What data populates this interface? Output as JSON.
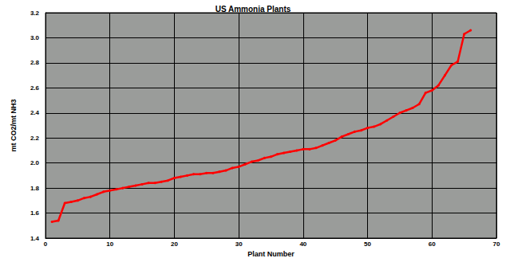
{
  "chart_data": {
    "type": "line",
    "title": "US Ammonia Plants",
    "x_label": "Plant Number",
    "y_label": "mt CO2/mt NH3",
    "x": [
      1,
      2,
      3,
      4,
      5,
      6,
      7,
      8,
      9,
      10,
      11,
      12,
      13,
      14,
      15,
      16,
      17,
      18,
      19,
      20,
      21,
      22,
      23,
      24,
      25,
      26,
      27,
      28,
      29,
      30,
      31,
      32,
      33,
      34,
      35,
      36,
      37,
      38,
      39,
      40,
      41,
      42,
      43,
      44,
      45,
      46,
      47,
      48,
      49,
      50,
      51,
      52,
      53,
      54,
      55,
      56,
      57,
      58,
      59,
      60,
      61,
      62,
      63,
      64,
      65,
      66
    ],
    "values": [
      1.53,
      1.54,
      1.68,
      1.69,
      1.7,
      1.72,
      1.73,
      1.75,
      1.77,
      1.78,
      1.79,
      1.8,
      1.81,
      1.82,
      1.83,
      1.84,
      1.84,
      1.85,
      1.86,
      1.88,
      1.89,
      1.9,
      1.91,
      1.91,
      1.92,
      1.92,
      1.93,
      1.94,
      1.96,
      1.97,
      1.99,
      2.01,
      2.02,
      2.04,
      2.05,
      2.07,
      2.08,
      2.09,
      2.1,
      2.11,
      2.11,
      2.12,
      2.14,
      2.16,
      2.18,
      2.21,
      2.23,
      2.25,
      2.26,
      2.28,
      2.29,
      2.31,
      2.34,
      2.37,
      2.4,
      2.42,
      2.44,
      2.47,
      2.56,
      2.58,
      2.62,
      2.7,
      2.78,
      2.81,
      3.03,
      3.06
    ],
    "color": "#ff0000",
    "xlim": [
      0,
      70
    ],
    "xticks": [
      0,
      10,
      20,
      30,
      40,
      50,
      60,
      70
    ],
    "ylim": [
      1.4,
      3.2
    ],
    "yticks": [
      {
        "value": 1.4,
        "label": "1.4"
      },
      {
        "value": 1.6,
        "label": "1.6"
      },
      {
        "value": 1.8,
        "label": "1.8"
      },
      {
        "value": 2.0,
        "label": "2.0"
      },
      {
        "value": 2.2,
        "label": "2.2"
      },
      {
        "value": 2.4,
        "label": "2.4"
      },
      {
        "value": 2.6,
        "label": "2.6"
      },
      {
        "value": 2.8,
        "label": "2.8"
      },
      {
        "value": 3.0,
        "label": "3.0"
      },
      {
        "value": 3.2,
        "label": "3.2"
      }
    ],
    "grid": true
  }
}
